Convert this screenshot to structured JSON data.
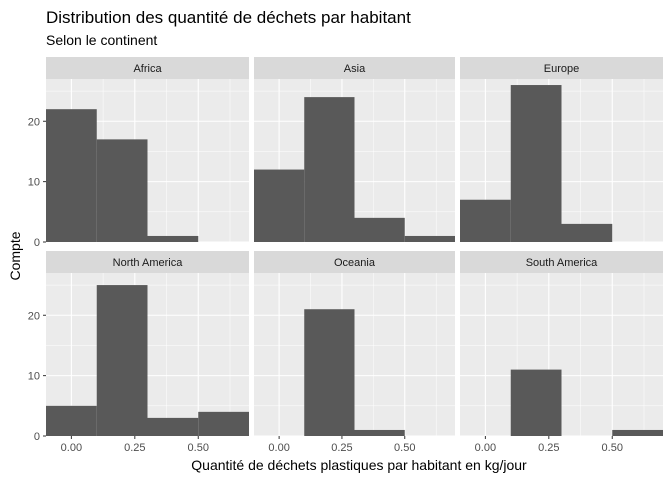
{
  "chart_data": {
    "type": "bar",
    "title": "Distribution des quantité de déchets par habitant",
    "subtitle": "Selon le continent",
    "xlabel": "Quantité de déchets plastiques par habitant en kg/jour",
    "ylabel": "Compte",
    "xlim": [
      -0.1,
      0.7
    ],
    "ylim": [
      0,
      27
    ],
    "x_ticks": [
      0.0,
      0.25,
      0.5
    ],
    "x_tick_labels": [
      "0.00",
      "0.25",
      "0.50"
    ],
    "y_ticks": [
      0,
      10,
      20
    ],
    "y_tick_labels": [
      "0",
      "10",
      "20"
    ],
    "bin_edges": [
      -0.1,
      0.1,
      0.3,
      0.5,
      0.7
    ],
    "grid": true,
    "facets": [
      {
        "name": "Africa",
        "values": [
          22,
          17,
          1,
          0
        ]
      },
      {
        "name": "Asia",
        "values": [
          12,
          24,
          4,
          1
        ]
      },
      {
        "name": "Europe",
        "values": [
          7,
          26,
          3,
          0
        ]
      },
      {
        "name": "North America",
        "values": [
          5,
          25,
          3,
          4
        ]
      },
      {
        "name": "Oceania",
        "values": [
          0,
          21,
          1,
          0
        ]
      },
      {
        "name": "South America",
        "values": [
          0,
          11,
          0,
          1
        ]
      }
    ],
    "colors": {
      "panel_bg": "#ebebeb",
      "strip_bg": "#d9d9d9",
      "grid_major": "#ffffff",
      "bar_fill": "#595959",
      "tick": "#333333"
    }
  }
}
